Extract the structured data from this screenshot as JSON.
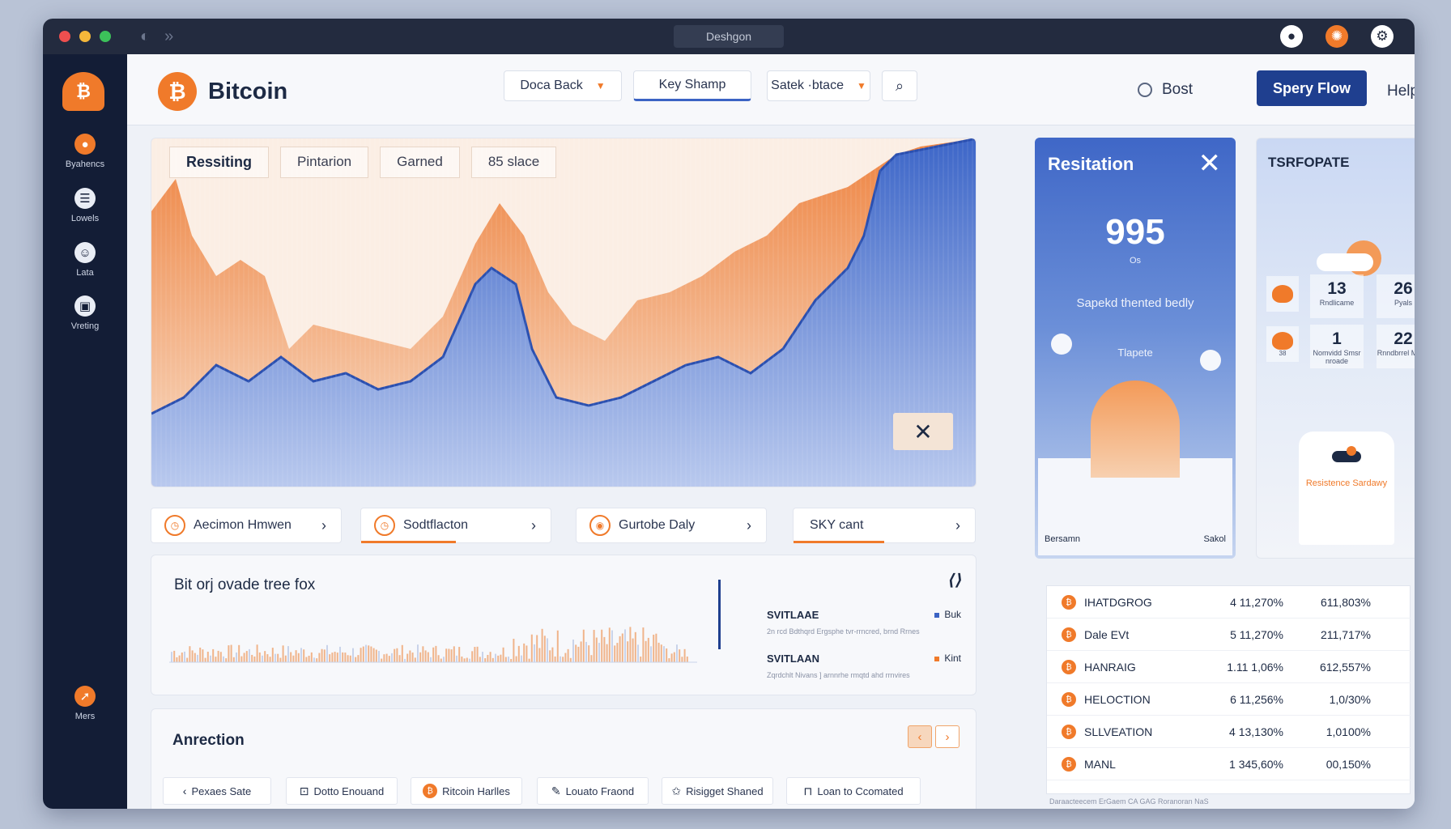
{
  "window": {
    "title": "Deshgon"
  },
  "brand": {
    "name": "Bitcoin",
    "logo_glyph": "₿"
  },
  "sidebar": {
    "items": [
      {
        "label": "Byahencs",
        "icon": "orange-badge-icon"
      },
      {
        "label": "Lowels",
        "icon": "chat-icon"
      },
      {
        "label": "Lata",
        "icon": "people-icon"
      },
      {
        "label": "Vreting",
        "icon": "image-icon"
      },
      {
        "label": "Mers",
        "icon": "compass-icon"
      }
    ]
  },
  "topbar": {
    "dropdown1": "Doca Back",
    "tab_active": "Key Shamp",
    "dropdown2": "Satek ·btace",
    "radio_label": "Bost",
    "primary_button": "Spery Flow",
    "help": "Helps"
  },
  "main_chart": {
    "tabs": [
      "Ressiting",
      "Pintarion",
      "Garned",
      "85 slace"
    ]
  },
  "pills": [
    {
      "label": "Aecimon Hmwen",
      "progress": 0
    },
    {
      "label": "Sodtflacton",
      "progress": 0.5
    },
    {
      "label": "Gurtobe Daly",
      "progress": 0
    },
    {
      "label": "SKY cant",
      "progress": 0.5
    }
  ],
  "resitation": {
    "title": "Resitation",
    "value": "995",
    "unit": "Os",
    "subtitle": "Sapekd thented bedly",
    "label": "Tlapete",
    "foot_left": "Bersamn",
    "foot_right": "Sakol"
  },
  "right_panel": {
    "title": "TSRFOPATE",
    "stats": [
      {
        "value": "13",
        "caption": "Rndlicame"
      },
      {
        "value": "26",
        "caption": "Pyals"
      },
      {
        "value": "1",
        "caption": "Nomvidd Smsr nroade"
      },
      {
        "value": "22",
        "caption": "Rnndbrrel Maad"
      }
    ],
    "icon_caption": "38",
    "warning": "Resistence Sardawy"
  },
  "volume": {
    "title": "Bit orj ovade tree fox",
    "legend": [
      {
        "name": "SVITLAAE",
        "tag": "Buk",
        "note": "2n rcd Bdthqrd Ergsphe tvr-rrncred, brnd Rrnes"
      },
      {
        "name": "SVITLAAN",
        "tag": "Kint",
        "note": "Zqrdchlt Nivans ] arnnrhe rmqtd ahd rrnvires"
      }
    ]
  },
  "actions": {
    "title": "Anrection",
    "buttons": [
      {
        "label": "Pexaes Sate",
        "icon": "chevron-left-icon"
      },
      {
        "label": "Dotto Enouand",
        "icon": "bag-icon"
      },
      {
        "label": "Ritcoin Harlles",
        "icon": "bitcoin-icon"
      },
      {
        "label": "Louato Fraond",
        "icon": "edit-icon"
      },
      {
        "label": "Risigget Shaned",
        "icon": "star-icon"
      },
      {
        "label": "Loan to Ccomated",
        "icon": "lock-icon"
      }
    ]
  },
  "table": {
    "rows": [
      {
        "name": "IHATDGROG",
        "v1": "4 11,270%",
        "v2": "611,803%"
      },
      {
        "name": "Dale EVt",
        "v1": "5 11,270%",
        "v2": "211,717%"
      },
      {
        "name": "HANRAIG",
        "v1": "1.11 1,06%",
        "v2": "612,557%"
      },
      {
        "name": "HELOCTION",
        "v1": "6 11,256%",
        "v2": "1,0/30%"
      },
      {
        "name": "SLLVEATION",
        "v1": "4 13,130%",
        "v2": "1,0100%"
      },
      {
        "name": "MANL",
        "v1": "1 345,60%",
        "v2": "00,150%"
      }
    ],
    "footer": "Daraacteecem ErGaem CA GAG Roranoran NaS"
  },
  "colors": {
    "accent": "#f07a2a",
    "primary": "#1f3f8f",
    "blue_area": "#4a74d0",
    "sidebar": "#131d36"
  }
}
